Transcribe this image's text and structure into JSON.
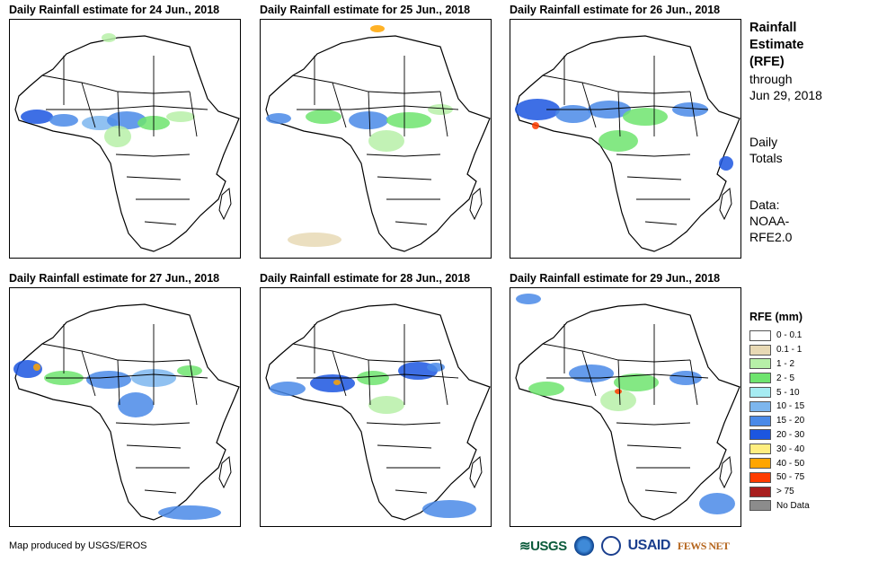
{
  "panels": [
    {
      "title": "Daily Rainfall estimate for 24 Jun., 2018"
    },
    {
      "title": "Daily Rainfall estimate for 25 Jun., 2018"
    },
    {
      "title": "Daily Rainfall estimate for 26 Jun., 2018"
    },
    {
      "title": "Daily Rainfall estimate for 27 Jun., 2018"
    },
    {
      "title": "Daily Rainfall estimate for 28 Jun., 2018"
    },
    {
      "title": "Daily Rainfall estimate for 29 Jun., 2018"
    }
  ],
  "sidebar": {
    "title_line1": "Rainfall",
    "title_line2": "Estimate",
    "title_line3": "(RFE)",
    "through": "through",
    "through_date": "Jun 29, 2018",
    "totals_line1": "Daily",
    "totals_line2": "Totals",
    "data_line1": "Data:",
    "data_line2": "NOAA-",
    "data_line3": "RFE2.0"
  },
  "legend": {
    "title": "RFE (mm)",
    "items": [
      {
        "label": "0 - 0.1",
        "color": "#ffffff"
      },
      {
        "label": "0.1 - 1",
        "color": "#e8d9b5"
      },
      {
        "label": "1 - 2",
        "color": "#b7f0a8"
      },
      {
        "label": "2 - 5",
        "color": "#6ee46e"
      },
      {
        "label": "5 - 10",
        "color": "#a6ecf2"
      },
      {
        "label": "10 - 15",
        "color": "#7db6ee"
      },
      {
        "label": "15 - 20",
        "color": "#4a8ae8"
      },
      {
        "label": "20 - 30",
        "color": "#1c56e0"
      },
      {
        "label": "30 - 40",
        "color": "#ffee80"
      },
      {
        "label": "40 - 50",
        "color": "#ffa500"
      },
      {
        "label": "50 - 75",
        "color": "#ff3c00"
      },
      {
        "label": "> 75",
        "color": "#a81e1e"
      },
      {
        "label": "No Data",
        "color": "#8c8c8c"
      }
    ]
  },
  "credit": "Map produced by USGS/EROS",
  "logos": {
    "usgs": "USGS",
    "usaid": "USAID",
    "fewsnet": "FEWS NET"
  }
}
